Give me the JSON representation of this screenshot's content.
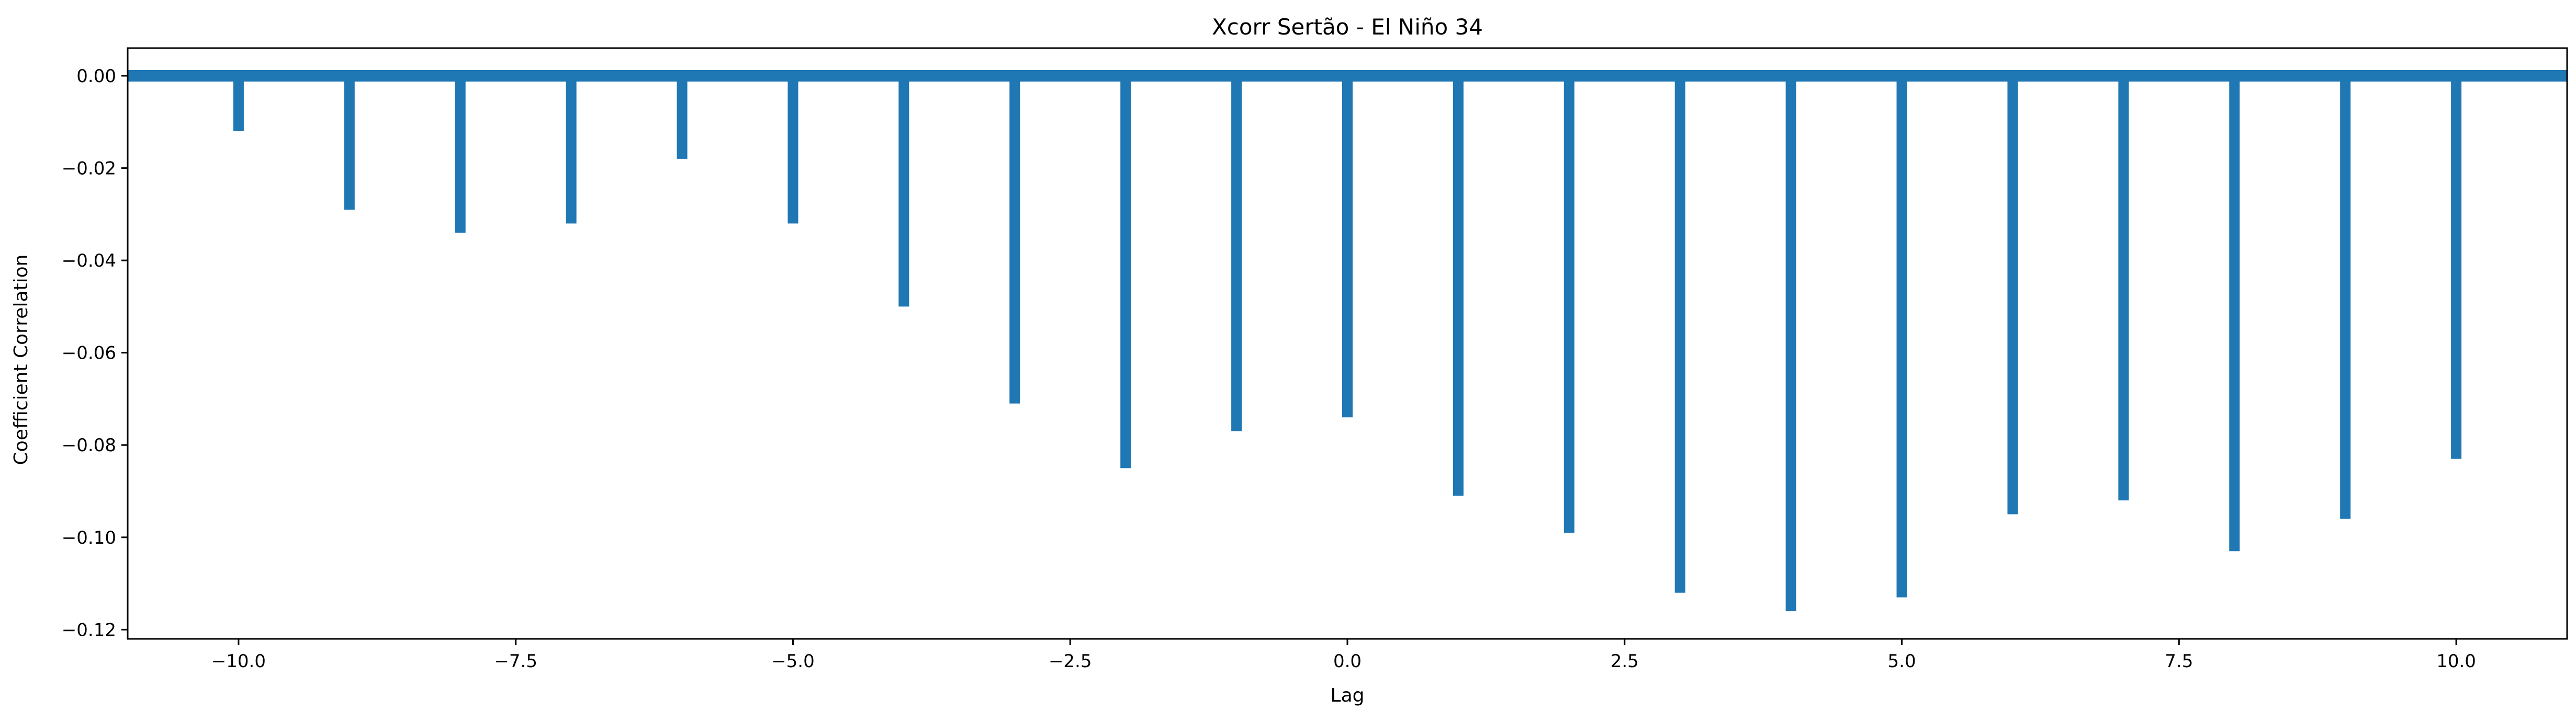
{
  "chart_data": {
    "type": "bar",
    "title": "Xcorr Sertão - El Niño 34",
    "xlabel": "Lag",
    "ylabel": "Coefficient Correlation",
    "xlim": [
      -11,
      11
    ],
    "ylim": [
      -0.122,
      0.006
    ],
    "xticks": [
      -10,
      -7.5,
      -5,
      -2.5,
      0,
      2.5,
      5,
      7.5,
      10
    ],
    "xtick_labels": [
      "−10.0",
      "−7.5",
      "−5.0",
      "−2.5",
      "0.0",
      "2.5",
      "5.0",
      "7.5",
      "10.0"
    ],
    "yticks": [
      0,
      -0.02,
      -0.04,
      -0.06,
      -0.08,
      -0.1,
      -0.12
    ],
    "ytick_labels": [
      "0.00",
      "−0.02",
      "−0.04",
      "−0.06",
      "−0.08",
      "−0.10",
      "−0.12"
    ],
    "baseline": 0,
    "grid": false,
    "color": "#1f77b4",
    "x": [
      -10,
      -9,
      -8,
      -7,
      -6,
      -5,
      -4,
      -3,
      -2,
      -1,
      0,
      1,
      2,
      3,
      4,
      5,
      6,
      7,
      8,
      9,
      10
    ],
    "values": [
      -0.012,
      -0.029,
      -0.034,
      -0.032,
      -0.018,
      -0.032,
      -0.05,
      -0.071,
      -0.085,
      -0.077,
      -0.074,
      -0.091,
      -0.099,
      -0.112,
      -0.116,
      -0.113,
      -0.095,
      -0.092,
      -0.103,
      -0.096,
      -0.083
    ]
  }
}
